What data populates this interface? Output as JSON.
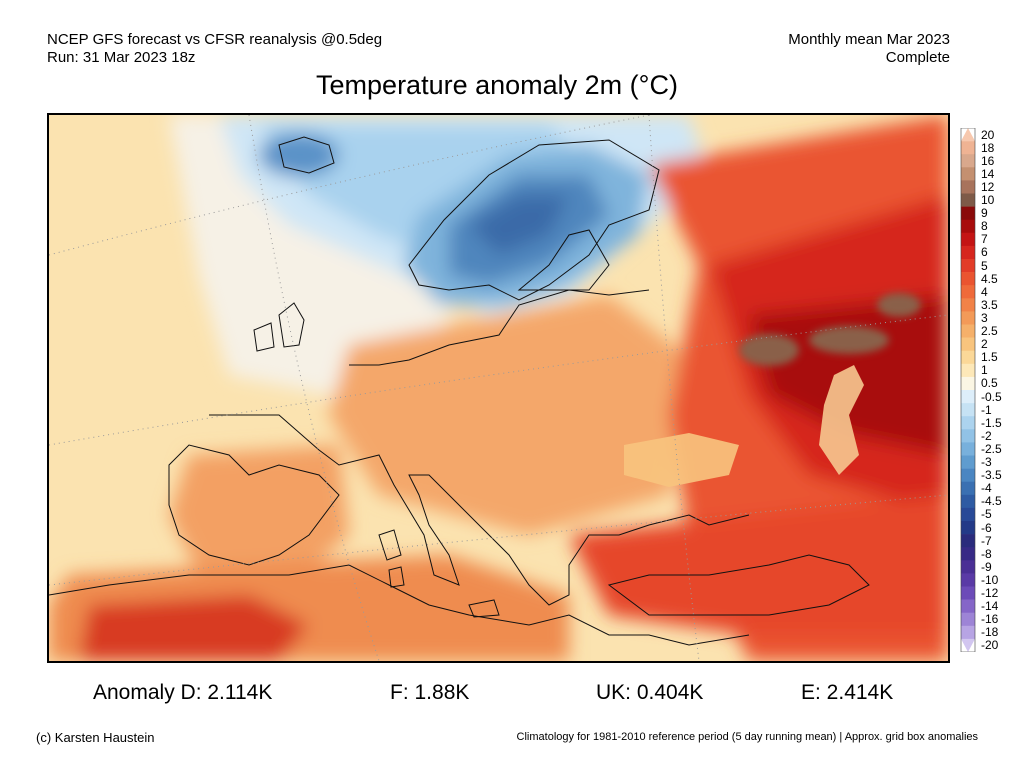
{
  "header": {
    "line1_left": "NCEP GFS forecast vs CFSR reanalysis @0.5deg",
    "line2_left": "Run: 31 Mar 2023 18z",
    "line1_right": "Monthly mean Mar 2023",
    "line2_right": "Complete"
  },
  "title": "Temperature anomaly 2m (°C)",
  "colorbar": {
    "labels": [
      "20",
      "18",
      "16",
      "14",
      "12",
      "10",
      "9",
      "8",
      "7",
      "6",
      "5",
      "4.5",
      "4",
      "3.5",
      "3",
      "2.5",
      "2",
      "1.5",
      "1",
      "0.5",
      "-0.5",
      "-1",
      "-1.5",
      "-2",
      "-2.5",
      "-3",
      "-3.5",
      "-4",
      "-4.5",
      "-5",
      "-6",
      "-7",
      "-8",
      "-9",
      "-10",
      "-12",
      "-14",
      "-16",
      "-18",
      "-20"
    ],
    "colors": [
      "#f7c8ae",
      "#efb393",
      "#d9a88c",
      "#c49070",
      "#a8735c",
      "#7e5a48",
      "#8a0a0a",
      "#a80c0c",
      "#c41414",
      "#d6261e",
      "#e23c28",
      "#ea5430",
      "#ef6a3a",
      "#f18248",
      "#f39a58",
      "#f5b06a",
      "#f8c47e",
      "#fbd898",
      "#fde8b8",
      "#fbf6e4",
      "#ddeefa",
      "#c6e2f4",
      "#acd3ee",
      "#91c2e6",
      "#78b0dc",
      "#5f9ccf",
      "#4a86c2",
      "#3a70b2",
      "#2e5ba3",
      "#284997",
      "#233a88",
      "#2a2b7c",
      "#372a86",
      "#4a2f95",
      "#5a3aa6",
      "#6c4bb8",
      "#8566c8",
      "#9d84d6",
      "#b7a4e4",
      "#d2c6f0"
    ]
  },
  "stats": {
    "anomaly_d": "Anomaly D: 2.114K",
    "france": "F: 1.88K",
    "uk": "UK: 0.404K",
    "europe": "E: 2.414K"
  },
  "footer": {
    "credit": "(c) Karsten Haustein",
    "note": "Climatology for 1981-2010 reference period (5 day running mean) | Approx. grid box anomalies"
  }
}
